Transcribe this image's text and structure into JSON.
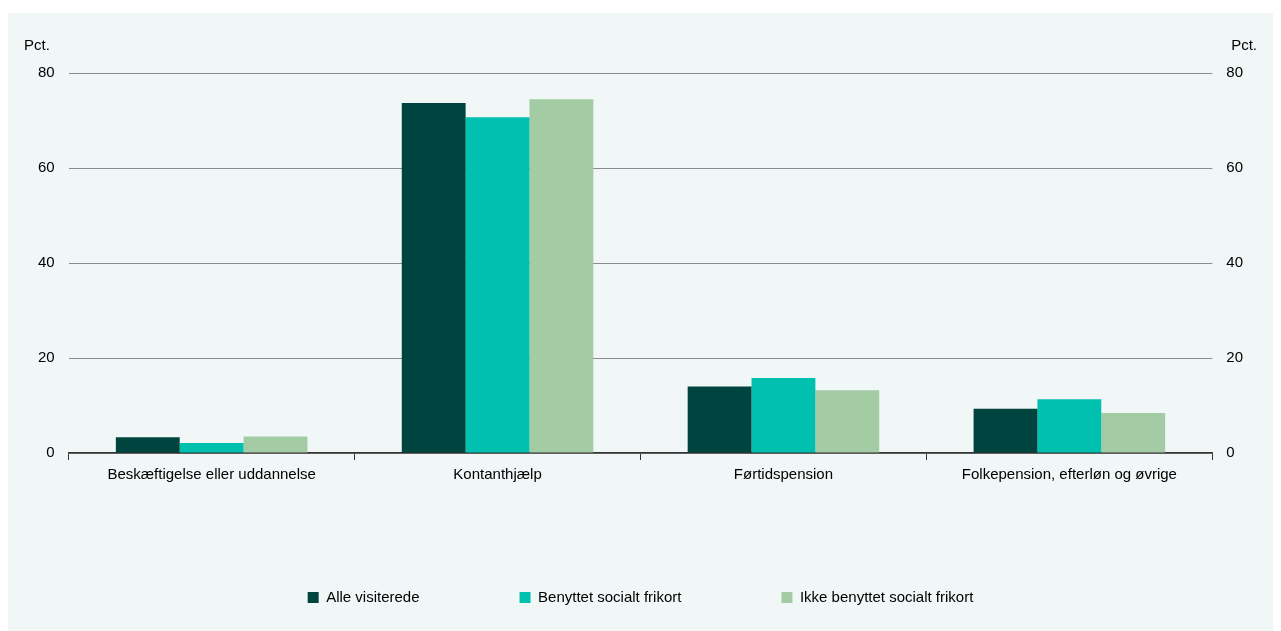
{
  "chart_data": {
    "type": "bar",
    "ylabel": "Pct.",
    "y2label": "Pct.",
    "categories": [
      "Beskæftigelse eller uddannelse",
      "Kontanthjælp",
      "Førtidspension",
      "Folkepension, efterløn og øvrige"
    ],
    "series": [
      {
        "name": "Alle visiterede",
        "color": "#00443f",
        "values": [
          3.3,
          73.7,
          14.0,
          9.3
        ]
      },
      {
        "name": "Benyttet socialt frikort",
        "color": "#00c0b0",
        "values": [
          2.1,
          70.7,
          15.8,
          11.3
        ]
      },
      {
        "name": "Ikke benyttet socialt frikort",
        "color": "#a3cca5",
        "values": [
          3.5,
          74.5,
          13.2,
          8.4
        ]
      }
    ],
    "ylim": [
      0,
      80
    ],
    "yticks": [
      0,
      20,
      40,
      60,
      80
    ],
    "y2lim": [
      0,
      80
    ],
    "y2ticks": [
      0,
      20,
      40,
      60,
      80
    ],
    "grid": "y",
    "legend": "bottom"
  }
}
